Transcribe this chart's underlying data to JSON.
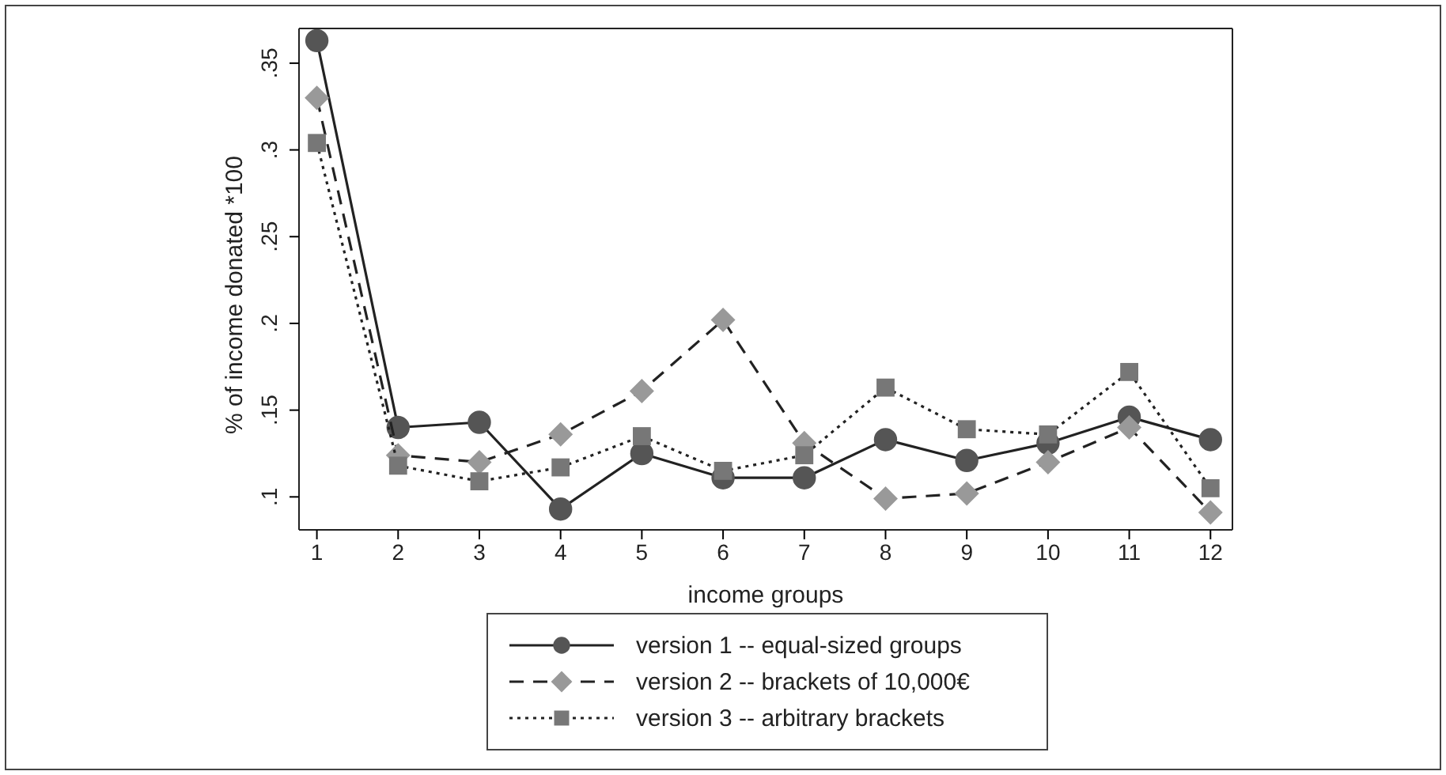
{
  "chart_data": {
    "type": "line",
    "xlabel": "income groups",
    "ylabel": "% of income donated *100",
    "x": [
      1,
      2,
      3,
      4,
      5,
      6,
      7,
      8,
      9,
      10,
      11,
      12
    ],
    "xlim": [
      0.78,
      12.27
    ],
    "xticks": [
      1,
      2,
      3,
      4,
      5,
      6,
      7,
      8,
      9,
      10,
      11,
      12
    ],
    "ylim": [
      0.081,
      0.37
    ],
    "yticks": [
      {
        "value": 0.1,
        "label": ".1"
      },
      {
        "value": 0.15,
        "label": ".15"
      },
      {
        "value": 0.2,
        "label": ".2"
      },
      {
        "value": 0.25,
        "label": ".25"
      },
      {
        "value": 0.3,
        "label": ".3"
      },
      {
        "value": 0.35,
        "label": ".35"
      }
    ],
    "legend": "bottom",
    "grid": false,
    "series": [
      {
        "name": "version 1 -- equal-sized groups",
        "color": "#555555",
        "marker": "circle",
        "line_style": "solid",
        "values": [
          0.363,
          0.14,
          0.143,
          0.093,
          0.125,
          0.111,
          0.111,
          0.133,
          0.121,
          0.131,
          0.146,
          0.133
        ]
      },
      {
        "name": "version 2 -- brackets of 10,000€",
        "color": "#999999",
        "marker": "diamond",
        "line_style": "dashed",
        "values": [
          0.33,
          0.124,
          0.12,
          0.136,
          0.161,
          0.202,
          0.131,
          0.099,
          0.102,
          0.12,
          0.14,
          0.091
        ]
      },
      {
        "name": "version 3 -- arbitrary brackets",
        "color": "#777777",
        "marker": "square",
        "line_style": "dotted",
        "values": [
          0.304,
          0.118,
          0.109,
          0.117,
          0.135,
          0.115,
          0.124,
          0.163,
          0.139,
          0.136,
          0.172,
          0.105
        ]
      }
    ]
  }
}
